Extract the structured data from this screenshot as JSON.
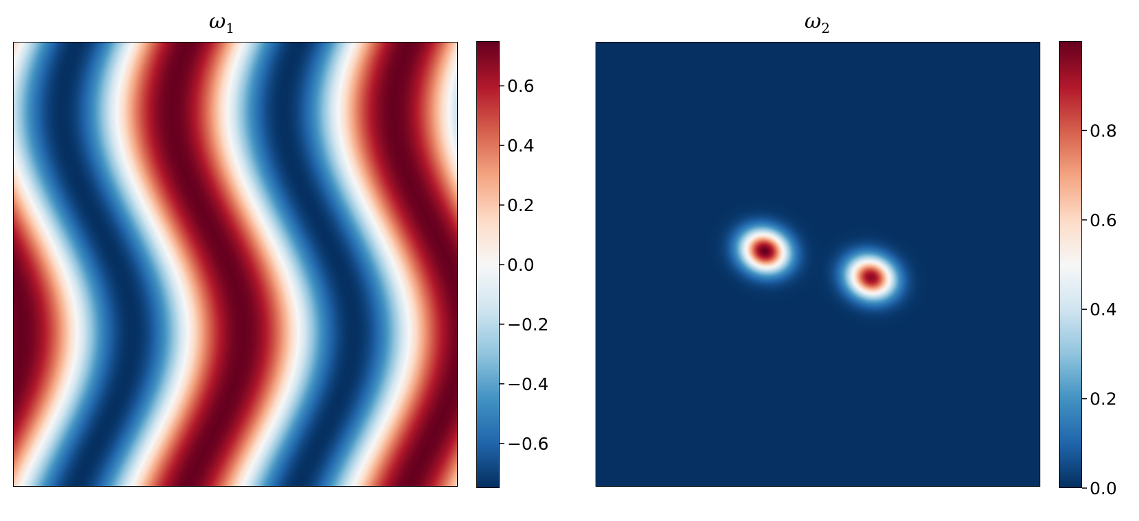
{
  "chart_data": [
    {
      "type": "heatmap",
      "title": "ω",
      "title_subscript": "1",
      "colormap": "RdBu_r",
      "colorbar": {
        "range": [
          -0.75,
          0.75
        ],
        "ticks": [
          0.6,
          0.4,
          0.2,
          0.0,
          -0.2,
          -0.4,
          -0.6
        ],
        "tick_labels": [
          "0.6",
          "0.4",
          "0.2",
          "0.0",
          "−0.2",
          "−0.4",
          "−0.6"
        ]
      },
      "axes_ticks_visible": false,
      "field_description": "two periods of a sheared wave; wave shear 1.0"
    },
    {
      "type": "heatmap",
      "title": "ω",
      "title_subscript": "2",
      "colormap": "RdBu_r",
      "colorbar": {
        "range": [
          0.0,
          1.0
        ],
        "ticks": [
          0.8,
          0.6,
          0.4,
          0.2,
          0.0
        ],
        "tick_labels": [
          "0.8",
          "0.6",
          "0.4",
          "0.2",
          "0.0"
        ]
      },
      "axes_ticks_visible": false,
      "blobs": [
        {
          "cx": 0.38,
          "cy": 0.47,
          "peak": 1.0
        },
        {
          "cx": 0.62,
          "cy": 0.53,
          "peak": 0.95
        }
      ]
    }
  ]
}
